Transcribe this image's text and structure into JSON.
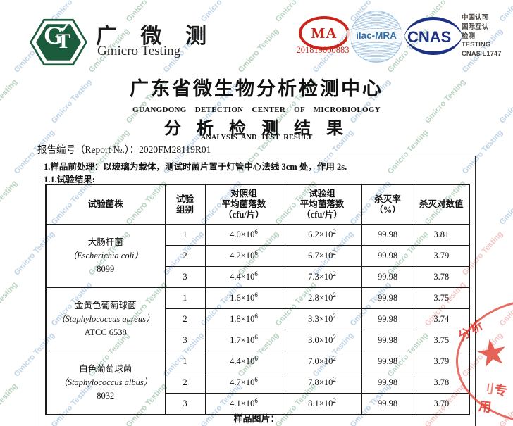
{
  "watermark": {
    "text": "Gmicro Testing",
    "green": "rgba(125,175,140,0.55)",
    "blue": "rgba(130,170,210,0.50)",
    "pink": "rgba(235,150,150,0.55)"
  },
  "brand": {
    "monogram_g": "G",
    "monogram_t": "T",
    "check": "✓",
    "name_cn": "广 微 测",
    "name_en": "Gmicro Testing",
    "green": "#1a5c3c"
  },
  "accreditation": {
    "cma_text": "MA",
    "cma_number": "201819000883",
    "cma_red": "#cc2418",
    "ilac_text": "ilac-MRA",
    "ilac_blue": "#2f6fae",
    "cnas_text": "CNAS",
    "cnas_navy": "#1e3283",
    "cnas_info": [
      "中国认可",
      "国际互认",
      "检测",
      "TESTING",
      "CNAS L1747"
    ]
  },
  "titles": {
    "org_cn": "广东省微生物分析检测中心",
    "org_en": "GUANGDONG DETECTION CENTER OF MICROBIOLOGY",
    "doc_cn": "分 析 检 测 结 果",
    "doc_en": "ANALYSIS AND TEST RESULT"
  },
  "report": {
    "label": "报告编号（Report №.）：",
    "number": "2020FM28119R01"
  },
  "section1": {
    "pretreatment": "1.样品前处理：以玻璃为载体，测试时菌片置于灯管中心法线 3cm 处，作用 2s.",
    "result_heading": "1.1.试验结果:"
  },
  "table": {
    "headers": [
      "试验菌株",
      "试验\n组别",
      "对照组\n平均菌落数\n（cfu/片）",
      "试验组\n平均菌落数\n（cfu/片）",
      "杀灭率\n（%）",
      "杀灭对数值"
    ],
    "groups": [
      {
        "name_cn": "大肠杆菌",
        "name_latin": "（Escherichia coli）",
        "strain": "8099",
        "rows": [
          {
            "no": "1",
            "ctrl": "4.0×10",
            "ctrl_exp": "6",
            "test": "6.2×10",
            "test_exp": "2",
            "rate": "99.98",
            "log": "3.81"
          },
          {
            "no": "2",
            "ctrl": "4.2×10",
            "ctrl_exp": "6",
            "test": "6.7×10",
            "test_exp": "2",
            "rate": "99.98",
            "log": "3.79"
          },
          {
            "no": "3",
            "ctrl": "4.4×10",
            "ctrl_exp": "6",
            "test": "7.3×10",
            "test_exp": "2",
            "rate": "99.98",
            "log": "3.78"
          }
        ]
      },
      {
        "name_cn": "金黄色葡萄球菌",
        "name_latin": "（Staphylococcus aureus）",
        "strain": "ATCC 6538",
        "rows": [
          {
            "no": "1",
            "ctrl": "1.6×10",
            "ctrl_exp": "6",
            "test": "2.8×10",
            "test_exp": "2",
            "rate": "99.98",
            "log": "3.75"
          },
          {
            "no": "2",
            "ctrl": "1.8×10",
            "ctrl_exp": "6",
            "test": "3.3×10",
            "test_exp": "2",
            "rate": "99.98",
            "log": "3.74"
          },
          {
            "no": "3",
            "ctrl": "1.7×10",
            "ctrl_exp": "6",
            "test": "3.0×10",
            "test_exp": "2",
            "rate": "99.98",
            "log": "3.75"
          }
        ]
      },
      {
        "name_cn": "白色葡萄球菌",
        "name_latin": "（Staphylococcus albus）",
        "strain": "8032",
        "rows": [
          {
            "no": "1",
            "ctrl": "4.4×10",
            "ctrl_exp": "6",
            "test": "7.0×10",
            "test_exp": "2",
            "rate": "99.98",
            "log": "3.79"
          },
          {
            "no": "2",
            "ctrl": "4.7×10",
            "ctrl_exp": "6",
            "test": "7.8×10",
            "test_exp": "2",
            "rate": "99.98",
            "log": "3.78"
          },
          {
            "no": "3",
            "ctrl": "4.1×10",
            "ctrl_exp": "6",
            "test": "8.1×10",
            "test_exp": "2",
            "rate": "99.98",
            "log": "3.70"
          }
        ]
      }
    ]
  },
  "footer": {
    "sample_label": "样品图片："
  },
  "stamp": {
    "top_text": "分析",
    "bottom_partial": "刂",
    "bottom_text": "专用",
    "star": "★",
    "red": "#e03c2d"
  }
}
